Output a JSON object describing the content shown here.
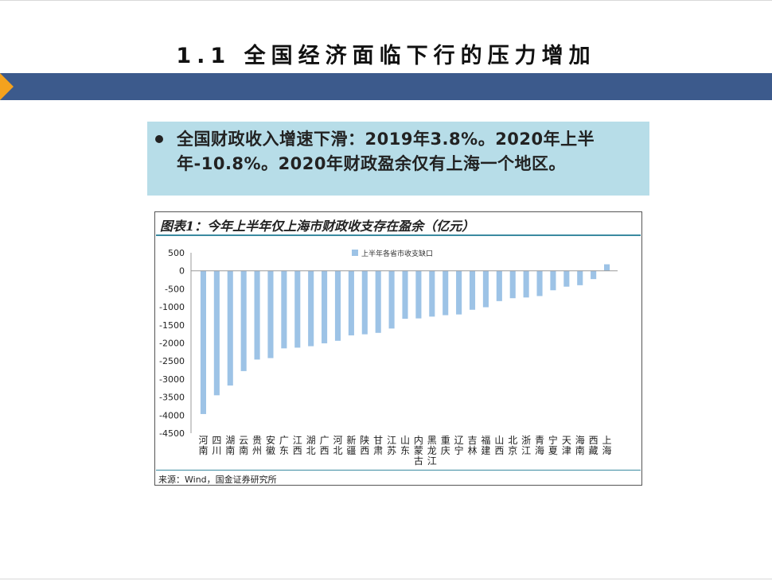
{
  "slide": {
    "title": "1.1 全国经济面临下行的压力增加",
    "callout": "全国财政收入增速下滑：2019年3.8%。2020年上半年-10.8%。2020年财政盈余仅有上海一个地区。",
    "source": "来源：Wind，国金证券研究所",
    "accent_color": "#3c5a8c",
    "arrow_color": "#f4a21e",
    "callout_bg": "#b7dde8"
  },
  "chart_data": {
    "type": "bar",
    "title": "图表1：今年上半年仅上海市财政收支存在盈余（亿元）",
    "legend": "上半年各省市收支缺口",
    "legend_position": "top-center",
    "bar_color": "#9dc3e6",
    "ylim": [
      -4500,
      500
    ],
    "yticks": [
      500,
      0,
      -500,
      -1000,
      -1500,
      -2000,
      -2500,
      -3000,
      -3500,
      -4000,
      -4500
    ],
    "categories": [
      "河南",
      "四川",
      "湖南",
      "云南",
      "贵州",
      "安徽",
      "广东",
      "江西",
      "湖北",
      "广西",
      "河北",
      "新疆",
      "陕西",
      "甘肃",
      "江苏",
      "山东",
      "内蒙古",
      "黑龙江",
      "重庆",
      "辽宁",
      "吉林",
      "福建",
      "山西",
      "北京",
      "浙江",
      "青海",
      "宁夏",
      "天津",
      "海南",
      "西藏",
      "上海"
    ],
    "values": [
      -3970,
      -3450,
      -3180,
      -2780,
      -2460,
      -2420,
      -2150,
      -2130,
      -2090,
      -2010,
      -1940,
      -1790,
      -1760,
      -1720,
      -1600,
      -1330,
      -1320,
      -1270,
      -1230,
      -1210,
      -1080,
      -1010,
      -840,
      -760,
      -740,
      -700,
      -540,
      -440,
      -400,
      -230,
      180
    ],
    "xlabel": "",
    "ylabel": "",
    "grid": false
  }
}
